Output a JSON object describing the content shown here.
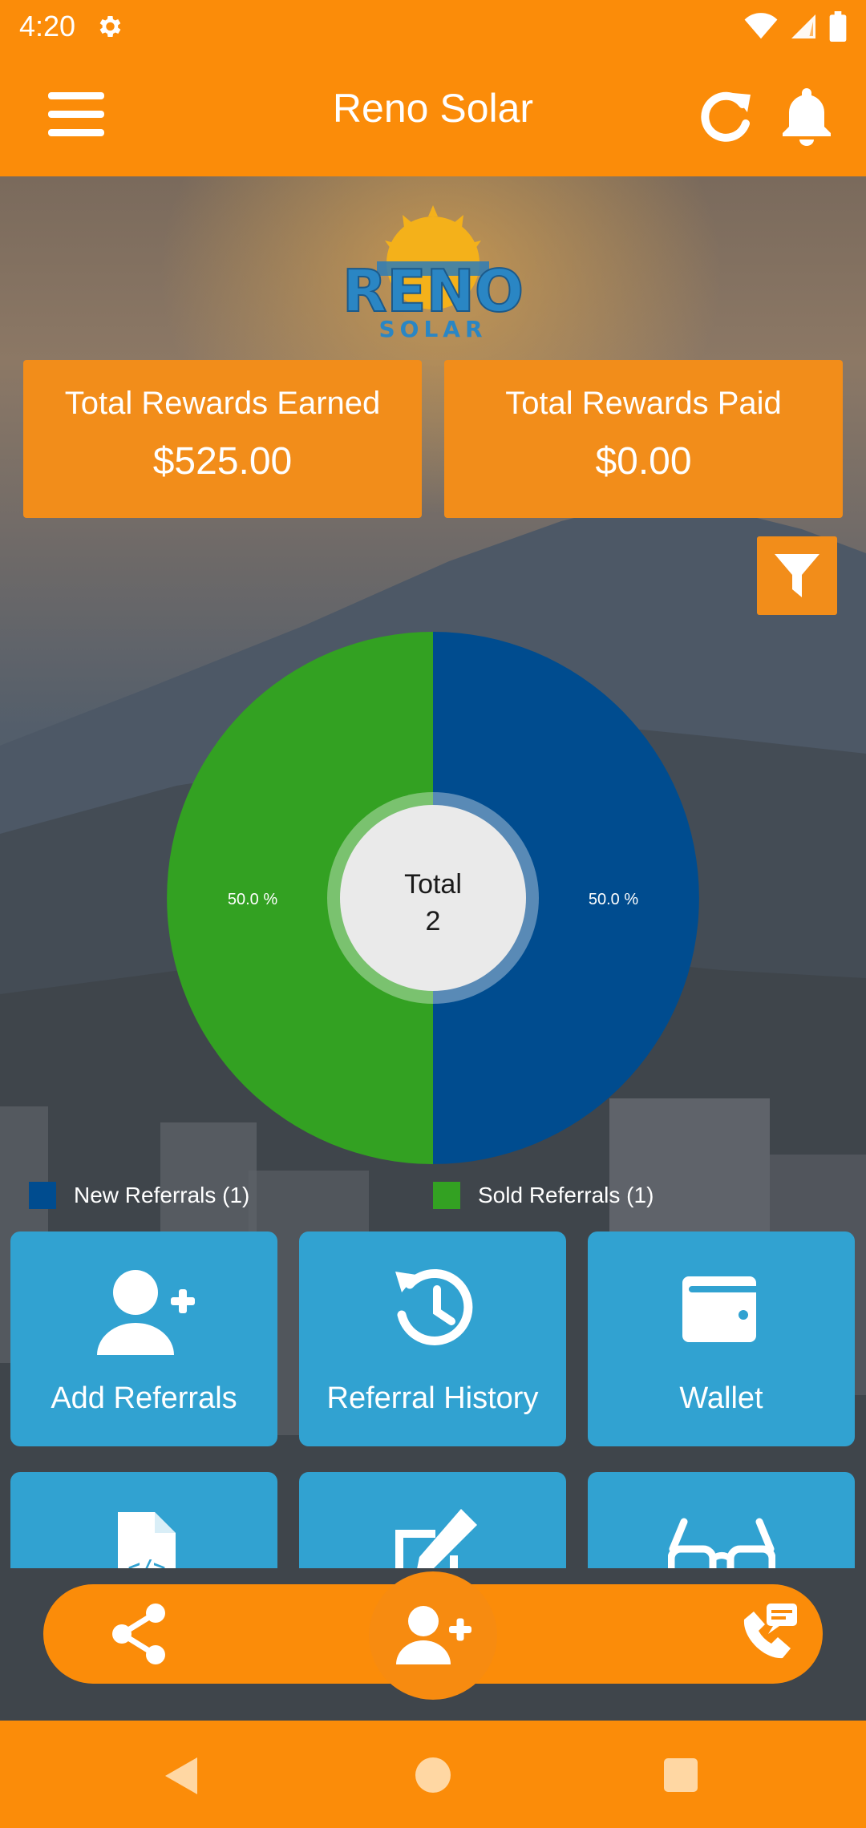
{
  "status_bar": {
    "time": "4:20"
  },
  "app_bar": {
    "title": "Reno Solar"
  },
  "logo": {
    "line1": "RENO",
    "line2": "SOLAR"
  },
  "rewards": {
    "earned_label": "Total Rewards Earned",
    "earned_value": "$525.00",
    "paid_label": "Total Rewards Paid",
    "paid_value": "$0.00"
  },
  "chart_data": {
    "type": "pie",
    "donut": true,
    "center_label": "Total",
    "center_value": "2",
    "slices": [
      {
        "name": "New Referrals (1)",
        "value": 1,
        "percent_label": "50.0 %",
        "color": "#004c8f"
      },
      {
        "name": "Sold Referrals (1)",
        "value": 1,
        "percent_label": "50.0 %",
        "color": "#33a122"
      }
    ],
    "legend_position": "bottom"
  },
  "tiles": [
    {
      "label": "Add Referrals",
      "icon": "add-user-icon"
    },
    {
      "label": "Referral History",
      "icon": "history-icon"
    },
    {
      "label": "Wallet",
      "icon": "wallet-icon"
    },
    {
      "label": "",
      "icon": "code-file-icon"
    },
    {
      "label": "",
      "icon": "edit-icon"
    },
    {
      "label": "",
      "icon": "glasses-icon"
    }
  ],
  "colors": {
    "accent": "#fb8c09",
    "tile": "#31a2d1",
    "card": "#f28d1a"
  }
}
